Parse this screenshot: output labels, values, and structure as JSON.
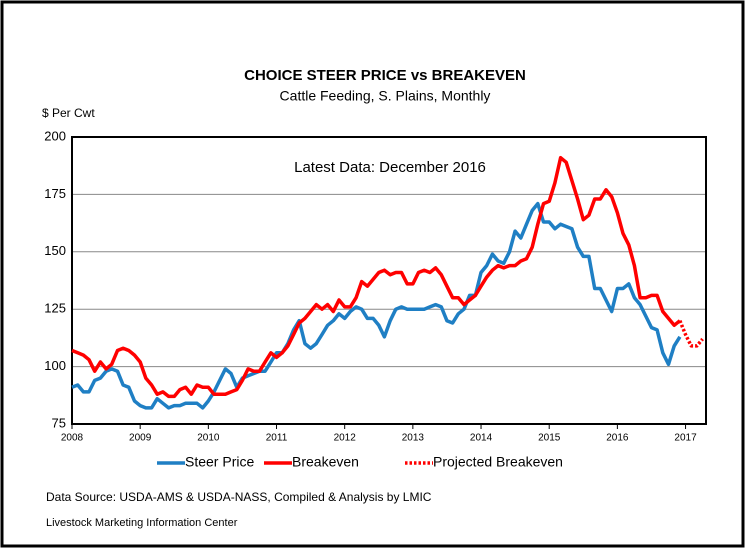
{
  "chart_data": {
    "type": "line",
    "title": "CHOICE STEER PRICE vs BREAKEVEN",
    "subtitle": "Cattle Feeding, S. Plains, Monthly",
    "y_label": "$ Per Cwt",
    "annotation": "Latest Data:  December 2016",
    "source": "Data Source:  USDA-AMS & USDA-NASS, Compiled & Analysis by LMIC",
    "footer": "Livestock Marketing Information Center",
    "x": [
      2008,
      2008.083,
      2008.167,
      2008.25,
      2008.333,
      2008.417,
      2008.5,
      2008.583,
      2008.667,
      2008.75,
      2008.833,
      2008.917,
      2009,
      2009.083,
      2009.167,
      2009.25,
      2009.333,
      2009.417,
      2009.5,
      2009.583,
      2009.667,
      2009.75,
      2009.833,
      2009.917,
      2010,
      2010.083,
      2010.167,
      2010.25,
      2010.333,
      2010.417,
      2010.5,
      2010.583,
      2010.667,
      2010.75,
      2010.833,
      2010.917,
      2011,
      2011.083,
      2011.167,
      2011.25,
      2011.333,
      2011.417,
      2011.5,
      2011.583,
      2011.667,
      2011.75,
      2011.833,
      2011.917,
      2012,
      2012.083,
      2012.167,
      2012.25,
      2012.333,
      2012.417,
      2012.5,
      2012.583,
      2012.667,
      2012.75,
      2012.833,
      2012.917,
      2013,
      2013.083,
      2013.167,
      2013.25,
      2013.333,
      2013.417,
      2013.5,
      2013.583,
      2013.667,
      2013.75,
      2013.833,
      2013.917,
      2014,
      2014.083,
      2014.167,
      2014.25,
      2014.333,
      2014.417,
      2014.5,
      2014.583,
      2014.667,
      2014.75,
      2014.833,
      2014.917,
      2015,
      2015.083,
      2015.167,
      2015.25,
      2015.333,
      2015.417,
      2015.5,
      2015.583,
      2015.667,
      2015.75,
      2015.833,
      2015.917,
      2016,
      2016.083,
      2016.167,
      2016.25,
      2016.333,
      2016.417,
      2016.5,
      2016.583,
      2016.667,
      2016.75,
      2016.833,
      2016.917,
      2017,
      2017.083,
      2017.167,
      2017.25
    ],
    "series": [
      {
        "name": "Steer Price",
        "color": "#1f7fc4",
        "style": "solid",
        "values": [
          91,
          92,
          89,
          89,
          94,
          95,
          98,
          99,
          98,
          92,
          91,
          85,
          83,
          82,
          82,
          86,
          84,
          82,
          83,
          83,
          84,
          84,
          84,
          82,
          85,
          89,
          94,
          99,
          97,
          91,
          95,
          96,
          97,
          98,
          98,
          102,
          106,
          106,
          110,
          116,
          120,
          110,
          108,
          110,
          114,
          118,
          120,
          123,
          121,
          124,
          126,
          125,
          121,
          121,
          118,
          113,
          120,
          125,
          126,
          125,
          125,
          125,
          125,
          126,
          127,
          126,
          120,
          119,
          123,
          125,
          131,
          131,
          141,
          144,
          149,
          146,
          145,
          150,
          159,
          156,
          162,
          168,
          171,
          163,
          163,
          160,
          162,
          161,
          160,
          152,
          148,
          148,
          134,
          134,
          129,
          124,
          134,
          134,
          136,
          130,
          127,
          122,
          117,
          116,
          106,
          101,
          109,
          113,
          null,
          null,
          null,
          null
        ]
      },
      {
        "name": "Breakeven",
        "color": "#ff0000",
        "style": "solid",
        "values": [
          107,
          106,
          105,
          103,
          98,
          102,
          99,
          101,
          107,
          108,
          107,
          105,
          102,
          95,
          92,
          88,
          89,
          87,
          87,
          90,
          91,
          88,
          92,
          91,
          91,
          88,
          88,
          88,
          89,
          90,
          94,
          99,
          98,
          98,
          102,
          106,
          104,
          106,
          109,
          114,
          119,
          121,
          124,
          127,
          125,
          127,
          124,
          129,
          126,
          126,
          130,
          137,
          135,
          138,
          141,
          142,
          140,
          141,
          141,
          136,
          136,
          141,
          142,
          141,
          143,
          140,
          135,
          130,
          130,
          127,
          129,
          131,
          135,
          139,
          142,
          144,
          143,
          144,
          144,
          146,
          147,
          152,
          162,
          171,
          172,
          180,
          191,
          189,
          181,
          173,
          164,
          166,
          173,
          173,
          177,
          174,
          167,
          158,
          153,
          144,
          130,
          130,
          131,
          131,
          124,
          121,
          118,
          120,
          null,
          null,
          null,
          null
        ]
      },
      {
        "name": "Projected Breakeven",
        "color": "#ff0000",
        "style": "dotted",
        "values": [
          null,
          null,
          null,
          null,
          null,
          null,
          null,
          null,
          null,
          null,
          null,
          null,
          null,
          null,
          null,
          null,
          null,
          null,
          null,
          null,
          null,
          null,
          null,
          null,
          null,
          null,
          null,
          null,
          null,
          null,
          null,
          null,
          null,
          null,
          null,
          null,
          null,
          null,
          null,
          null,
          null,
          null,
          null,
          null,
          null,
          null,
          null,
          null,
          null,
          null,
          null,
          null,
          null,
          null,
          null,
          null,
          null,
          null,
          null,
          null,
          null,
          null,
          null,
          null,
          null,
          null,
          null,
          null,
          null,
          null,
          null,
          null,
          null,
          null,
          null,
          null,
          null,
          null,
          null,
          null,
          null,
          null,
          null,
          null,
          null,
          null,
          null,
          null,
          null,
          null,
          null,
          null,
          null,
          null,
          null,
          null,
          null,
          null,
          null,
          null,
          null,
          null,
          null,
          null,
          null,
          null,
          null,
          120,
          114,
          109,
          109,
          112
        ]
      }
    ],
    "xlim": [
      2008,
      2017.3
    ],
    "xticks": [
      2008,
      2009,
      2010,
      2011,
      2012,
      2013,
      2014,
      2015,
      2016,
      2017
    ],
    "ylim": [
      75,
      200
    ],
    "yticks": [
      75,
      100,
      125,
      150,
      175,
      200
    ],
    "grid": true,
    "legend": "bottom"
  }
}
